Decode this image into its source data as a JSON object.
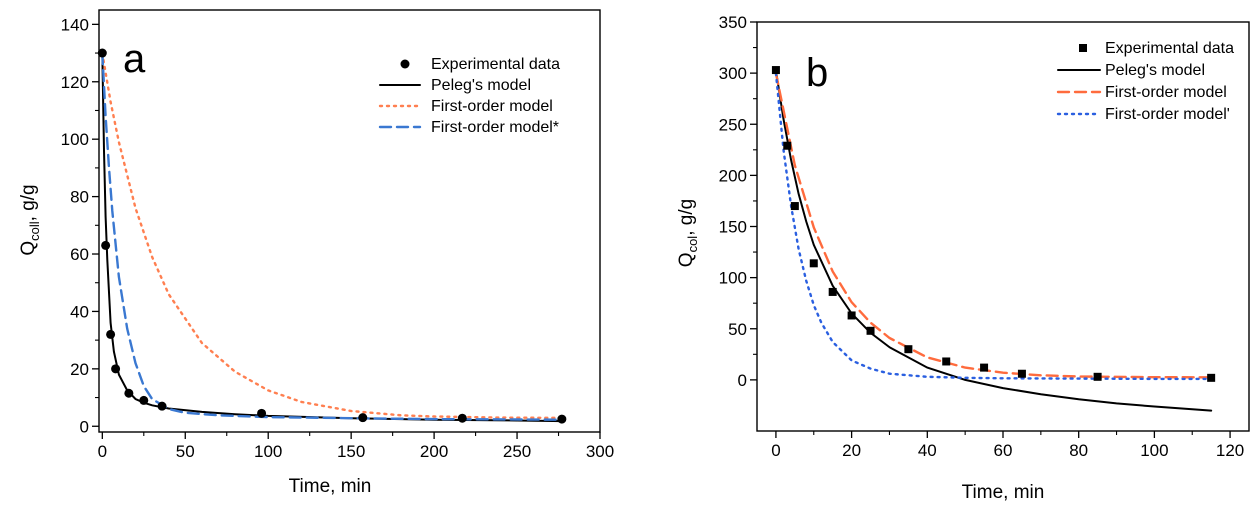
{
  "chart_data": [
    {
      "type": "line",
      "panel_label": "a",
      "xlabel": "Time, min",
      "ylabel_main": "Q",
      "ylabel_sub": "coll",
      "ylabel_unit": ", g/g",
      "xlim": [
        -2,
        300
      ],
      "ylim": [
        -2,
        145
      ],
      "xticks": [
        0,
        50,
        100,
        150,
        200,
        250,
        300
      ],
      "yticks": [
        0,
        20,
        40,
        60,
        80,
        100,
        120,
        140
      ],
      "grid": false,
      "legend_position": "top-right",
      "series": [
        {
          "name": "Experimental data",
          "kind": "points",
          "marker": "circle",
          "color": "#000000",
          "x": [
            0,
            2,
            5,
            8,
            16,
            25,
            36,
            96,
            157,
            217,
            277
          ],
          "y": [
            130,
            63,
            32,
            20,
            11.5,
            9,
            7,
            4.5,
            3,
            2.8,
            2.5
          ]
        },
        {
          "name": "Peleg's model",
          "kind": "line",
          "style": "solid",
          "color": "#000000",
          "x": [
            0,
            1,
            2,
            3,
            5,
            7,
            10,
            15,
            20,
            25,
            30,
            40,
            60,
            80,
            100,
            150,
            200,
            250,
            277
          ],
          "y": [
            130,
            96,
            73,
            58,
            36,
            26,
            18,
            12.5,
            9.5,
            8.2,
            7.3,
            6.2,
            5,
            4.2,
            3.6,
            2.8,
            2.3,
            2,
            1.8
          ]
        },
        {
          "name": "First-order model",
          "kind": "line",
          "style": "dotted",
          "color": "#ff7f50",
          "x": [
            0,
            5,
            10,
            20,
            30,
            40,
            60,
            80,
            100,
            120,
            150,
            180,
            200,
            240,
            277
          ],
          "y": [
            130,
            113,
            99,
            76,
            59,
            46,
            29,
            19,
            12.5,
            8.5,
            5.3,
            3.8,
            3.4,
            3,
            2.9
          ]
        },
        {
          "name": "First-order model*",
          "kind": "line",
          "style": "dashed",
          "color": "#3a78d1",
          "x": [
            0,
            2,
            4,
            6,
            10,
            15,
            20,
            25,
            30,
            40,
            50,
            70,
            100,
            150,
            200,
            277
          ],
          "y": [
            130,
            108,
            90,
            75,
            52,
            34,
            22,
            14,
            9.5,
            6,
            4.7,
            3.8,
            3.2,
            2.8,
            2.5,
            2.3
          ]
        }
      ]
    },
    {
      "type": "line",
      "panel_label": "b",
      "xlabel": "Time, min",
      "ylabel_main": "Q",
      "ylabel_sub": "col",
      "ylabel_unit": ", g/g",
      "xlim": [
        -5,
        125
      ],
      "ylim": [
        -50,
        350
      ],
      "xticks": [
        0,
        20,
        40,
        60,
        80,
        100,
        120
      ],
      "yticks": [
        0,
        50,
        100,
        150,
        200,
        250,
        300,
        350
      ],
      "grid": false,
      "legend_position": "top-right",
      "series": [
        {
          "name": "Experimental data",
          "kind": "points",
          "marker": "square",
          "color": "#000000",
          "x": [
            0,
            3,
            5,
            10,
            15,
            20,
            25,
            35,
            45,
            55,
            65,
            85,
            115
          ],
          "y": [
            303,
            229,
            170,
            114,
            86,
            63,
            48,
            30,
            18,
            12,
            6,
            3,
            2
          ]
        },
        {
          "name": "Peleg's model",
          "kind": "line",
          "style": "solid",
          "color": "#000000",
          "x": [
            0,
            2,
            4,
            6,
            8,
            10,
            15,
            20,
            25,
            30,
            40,
            50,
            60,
            70,
            80,
            90,
            100,
            115
          ],
          "y": [
            303,
            255,
            215,
            182,
            155,
            132,
            92,
            65,
            46,
            32,
            12,
            0,
            -8,
            -14,
            -19,
            -23,
            -26,
            -30
          ]
        },
        {
          "name": "First-order model",
          "kind": "line",
          "style": "dashed",
          "color": "#ff6b3d",
          "x": [
            0,
            5,
            10,
            15,
            20,
            25,
            30,
            40,
            50,
            60,
            70,
            80,
            100,
            115
          ],
          "y": [
            300,
            210,
            149,
            106,
            76,
            56,
            41,
            22,
            12,
            7,
            4.5,
            3.3,
            2.6,
            2.5
          ]
        },
        {
          "name": "First-order model'",
          "kind": "line",
          "style": "dotted",
          "color": "#2a5fe0",
          "x": [
            0,
            2,
            4,
            6,
            8,
            10,
            12,
            15,
            20,
            25,
            30,
            40,
            50,
            60,
            80,
            100,
            115
          ],
          "y": [
            300,
            225,
            170,
            128,
            97,
            73,
            56,
            37,
            19,
            11,
            6,
            3,
            2,
            1.5,
            1.2,
            1,
            1
          ]
        }
      ]
    }
  ]
}
